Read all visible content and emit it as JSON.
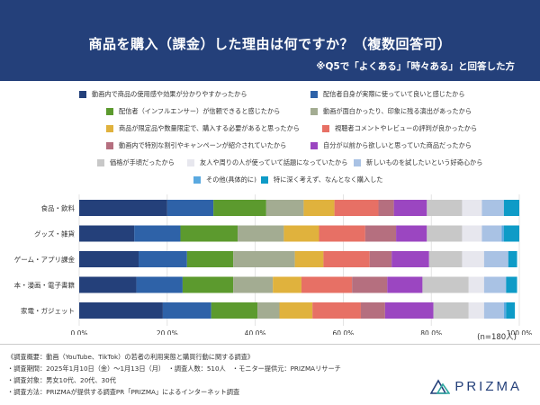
{
  "header": {
    "title": "商品を購入（課金）した理由は何ですか？（複数回答可）",
    "subtitle": "※Q5で「よくある」「時々ある」と回答した方"
  },
  "sample_size": "(n=180人)",
  "footer": {
    "lines": [
      "《調査概要：動画（YouTube、TikTok）の若者の利用実態と購買行動に関する調査》",
      "・調査期間：2025年1月10日（金）〜1月13日（月）　・調査人数：510人　・モニター提供元：PRIZMAリサーチ",
      "・調査対象：男女10代、20代、30代",
      "・調査方法：PRIZMAが提供する調査PR「PRIZMA」によるインターネット調査"
    ]
  },
  "logo": {
    "text": "PRIZMA",
    "icon": "prizma-mountain-icon"
  },
  "chart_data": {
    "type": "bar",
    "orientation": "horizontal",
    "stacked": true,
    "normalized": true,
    "categories": [
      "食品・飲料",
      "グッズ・雑貨",
      "ゲーム・アプリ課金",
      "本・漫画・電子書籍",
      "家電・ガジェット"
    ],
    "xlim": [
      0,
      100
    ],
    "xticks": [
      "0.0%",
      "20.0%",
      "40.0%",
      "60.0%",
      "80.0%",
      "100.0%"
    ],
    "grid": true,
    "legend_position": "top",
    "series": [
      {
        "name": "動画内で商品の使用感や効果が分かりやすかったから",
        "color": "#24407a",
        "values": [
          20,
          12.5,
          13.5,
          13,
          19
        ]
      },
      {
        "name": "配信者自身が実際に使っていて良いと感じたから",
        "color": "#2e62a8",
        "values": [
          10.5,
          10.5,
          11,
          10.5,
          11
        ]
      },
      {
        "name": "配信者（インフルエンサー）が信頼できると感じたから",
        "color": "#5c9a2e",
        "values": [
          12,
          13,
          10.5,
          11.5,
          10.5
        ]
      },
      {
        "name": "動画が面白かったり、印象に残る演出があったから",
        "color": "#a3ac92",
        "values": [
          8.5,
          10.5,
          14,
          9,
          5
        ]
      },
      {
        "name": "商品が限定品や数量限定で、購入する必要があると思ったから",
        "color": "#e0b23d",
        "values": [
          7,
          8,
          6.5,
          6.5,
          7.5
        ]
      },
      {
        "name": "視聴者コメントやレビューの評判が良かったから",
        "color": "#e77065",
        "values": [
          10,
          10.5,
          10.5,
          11.5,
          11
        ]
      },
      {
        "name": "動画内で特別な割引やキャンペーンが紹介されていたから",
        "color": "#b56f7f",
        "values": [
          3.5,
          7,
          5,
          8,
          5.5
        ]
      },
      {
        "name": "自分が以前から欲しいと思っていた商品だったから",
        "color": "#9b46c1",
        "values": [
          7.5,
          7,
          8.5,
          8,
          11
        ]
      },
      {
        "name": "価格が手頃だったから",
        "color": "#c8c8c8",
        "values": [
          8,
          8,
          7.5,
          10.5,
          8
        ]
      },
      {
        "name": "友人や周りの人が使っていて話題になっていたから",
        "color": "#e7e7ee",
        "values": [
          4.5,
          4.5,
          5,
          3.5,
          3.5
        ]
      },
      {
        "name": "新しいものを試したいという好奇心から",
        "color": "#a9c2e4",
        "values": [
          5,
          4.5,
          5.5,
          5,
          4.5
        ]
      },
      {
        "name": "その他(具体的に)",
        "color": "#5aa9e0",
        "values": [
          0,
          0.5,
          0,
          0,
          0.5
        ]
      },
      {
        "name": "特に深く考えず、なんとなく購入した",
        "color": "#0e9bc7",
        "values": [
          3.5,
          3.5,
          2,
          2.5,
          2
        ]
      }
    ]
  }
}
